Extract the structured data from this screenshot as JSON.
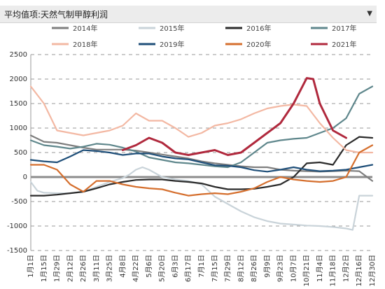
{
  "header": {
    "title": "平均值项:天然气制甲醇利润",
    "dropdown_icon": "triangle-down-icon"
  },
  "chart_data": {
    "type": "line",
    "title": "",
    "xlabel": "",
    "ylabel": "",
    "ylim": [
      -1500,
      2500
    ],
    "yticks": [
      -1500,
      -1000,
      -500,
      0,
      500,
      1000,
      1500,
      2000,
      2500
    ],
    "grid": "horizontal dashed",
    "legend_position": "top",
    "x_tick_labels": [
      "1月1日",
      "1月15日",
      "1月29日",
      "2月12日",
      "2月26日",
      "3月11日",
      "3月25日",
      "4月8日",
      "4月22日",
      "5月6日",
      "5月20日",
      "6月3日",
      "6月17日",
      "7月1日",
      "7月15日",
      "7月29日",
      "8月12日",
      "8月26日",
      "9月9日",
      "9月23日",
      "10月7日",
      "10月21日",
      "11月4日",
      "11月18日",
      "12月2日",
      "12月16日",
      "12月30日"
    ],
    "series": [
      {
        "name": "2014年",
        "color": "#7f7f7f",
        "x": [
          0,
          1,
          2,
          3,
          4,
          5,
          6,
          7,
          8,
          9,
          10,
          11,
          12,
          13,
          14,
          15,
          16,
          17,
          18,
          19,
          20,
          21,
          22,
          23,
          24,
          25,
          26
        ],
        "values": [
          850,
          720,
          700,
          650,
          600,
          560,
          560,
          560,
          540,
          500,
          460,
          420,
          380,
          320,
          280,
          250,
          220,
          200,
          200,
          150,
          130,
          120,
          110,
          120,
          130,
          120,
          -80
        ]
      },
      {
        "name": "2015年",
        "color": "#c9d3d9",
        "x": [
          0,
          0.5,
          1,
          2,
          3,
          4,
          5,
          6,
          7,
          7.5,
          8,
          8.5,
          9,
          10,
          11,
          12,
          13,
          14,
          15,
          16,
          17,
          18,
          19,
          20,
          21,
          22,
          23,
          24,
          24.5,
          25,
          26
        ],
        "values": [
          -100,
          -280,
          -320,
          -330,
          -330,
          -300,
          -200,
          -100,
          -20,
          50,
          150,
          200,
          150,
          0,
          -50,
          -80,
          -150,
          -400,
          -550,
          -700,
          -820,
          -900,
          -950,
          -970,
          -990,
          -1000,
          -1020,
          -1050,
          -1080,
          -380,
          -380
        ]
      },
      {
        "name": "2016年",
        "color": "#2b2b2b",
        "x": [
          0,
          1,
          2,
          3,
          4,
          5,
          6,
          7,
          8,
          9,
          10,
          11,
          12,
          13,
          14,
          15,
          16,
          17,
          18,
          19,
          20,
          21,
          22,
          23,
          24,
          25,
          26
        ],
        "values": [
          -380,
          -380,
          -360,
          -330,
          -300,
          -230,
          -150,
          -100,
          -60,
          -50,
          -50,
          -80,
          -100,
          -130,
          -200,
          -250,
          -250,
          -240,
          -200,
          -150,
          0,
          280,
          300,
          250,
          650,
          820,
          800
        ]
      },
      {
        "name": "2017年",
        "color": "#5f878c",
        "x": [
          0,
          1,
          2,
          3,
          4,
          5,
          6,
          7,
          8,
          9,
          10,
          11,
          12,
          13,
          14,
          15,
          16,
          17,
          18,
          19,
          20,
          21,
          22,
          23,
          24,
          25,
          26
        ],
        "values": [
          750,
          650,
          620,
          580,
          620,
          680,
          660,
          600,
          520,
          400,
          350,
          300,
          280,
          250,
          220,
          200,
          300,
          500,
          700,
          750,
          780,
          800,
          900,
          1000,
          1200,
          1700,
          1850
        ]
      },
      {
        "name": "2018年",
        "color": "#f3b8a3",
        "x": [
          0,
          1,
          2,
          3,
          4,
          5,
          6,
          7,
          8,
          9,
          10,
          11,
          12,
          13,
          14,
          15,
          16,
          17,
          18,
          19,
          20,
          21,
          22,
          23,
          24,
          25,
          26
        ],
        "values": [
          1850,
          1500,
          950,
          900,
          850,
          900,
          950,
          1050,
          1300,
          1150,
          1150,
          1000,
          820,
          900,
          1050,
          1100,
          1180,
          1300,
          1400,
          1450,
          1480,
          1450,
          1100,
          800,
          550,
          500,
          500
        ]
      },
      {
        "name": "2019年",
        "color": "#1f4f79",
        "x": [
          0,
          1,
          2,
          3,
          4,
          5,
          6,
          7,
          8,
          9,
          10,
          11,
          12,
          13,
          14,
          15,
          16,
          17,
          18,
          19,
          20,
          21,
          22,
          23,
          24,
          25,
          26
        ],
        "values": [
          350,
          320,
          300,
          420,
          550,
          530,
          500,
          450,
          480,
          480,
          420,
          380,
          360,
          300,
          240,
          230,
          200,
          140,
          110,
          150,
          200,
          150,
          120,
          130,
          150,
          200,
          250
        ]
      },
      {
        "name": "2020年",
        "color": "#d56f2e",
        "x": [
          0,
          1,
          2,
          3,
          4,
          5,
          6,
          7,
          8,
          9,
          10,
          11,
          12,
          13,
          14,
          15,
          16,
          17,
          18,
          19,
          20,
          21,
          22,
          23,
          24,
          25,
          26
        ],
        "values": [
          250,
          250,
          150,
          -150,
          -300,
          -80,
          -80,
          -150,
          -200,
          -230,
          -250,
          -320,
          -380,
          -350,
          -330,
          -350,
          -300,
          -230,
          -100,
          0,
          -50,
          -80,
          -100,
          -80,
          0,
          500,
          650
        ]
      },
      {
        "name": "2021年",
        "color": "#b0293d",
        "x": [
          0,
          1,
          2,
          3,
          4,
          5,
          6,
          7,
          8,
          9,
          10,
          11,
          12,
          13,
          14,
          15,
          16,
          17,
          18,
          19,
          20,
          21,
          21.5,
          22,
          23,
          24,
          25,
          26
        ],
        "values": [
          null,
          null,
          null,
          null,
          null,
          null,
          null,
          550,
          650,
          800,
          700,
          500,
          450,
          500,
          550,
          450,
          500,
          700,
          900,
          1100,
          1500,
          2020,
          2000,
          1500,
          950,
          800,
          null,
          null
        ]
      }
    ]
  }
}
